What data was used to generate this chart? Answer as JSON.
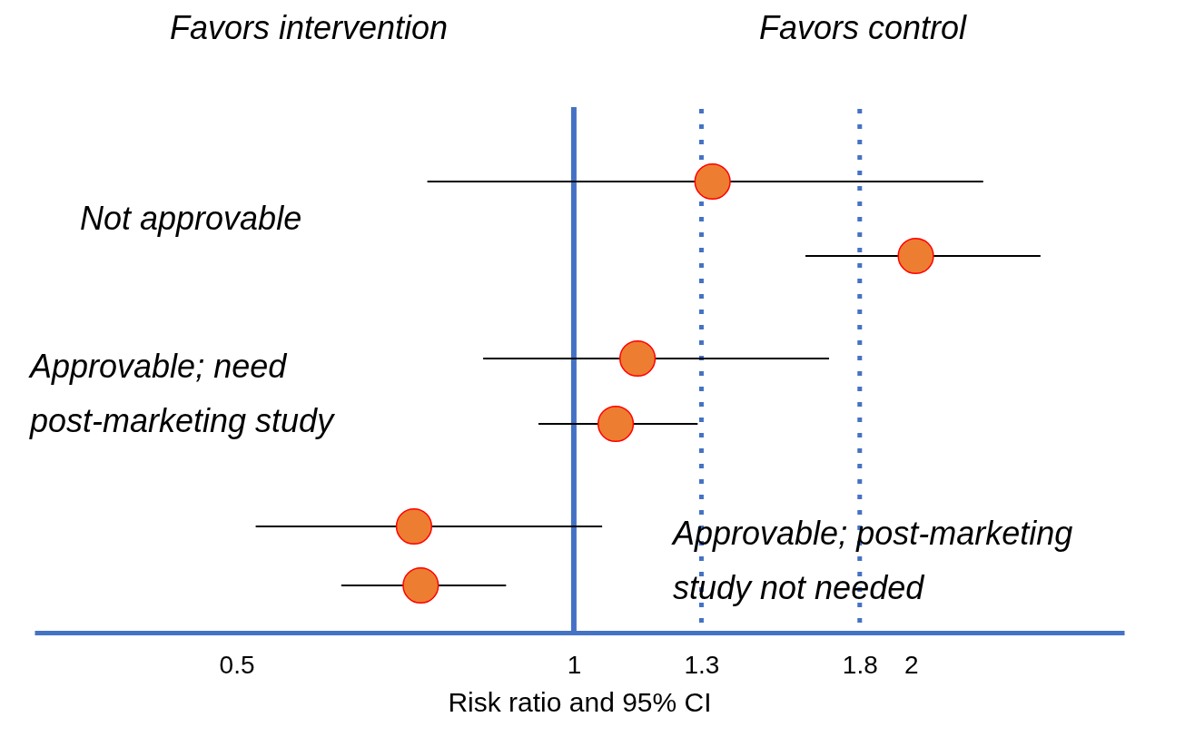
{
  "chart_data": {
    "type": "scatter",
    "orientation": "horizontal",
    "xlabel": "Risk ratio and 95% CI",
    "log": "x",
    "xlim": [
      0.33,
      3.1
    ],
    "xticks": [
      0.5,
      1,
      1.3,
      1.8,
      2
    ],
    "grid": false,
    "marker": "circle",
    "tick_labels": "x",
    "categories": [
      null,
      null,
      null,
      null,
      null,
      null
    ],
    "series": [
      {
        "color": "#ed7d31",
        "values": [
          1.33,
          2.02,
          1.14,
          1.09,
          0.72,
          0.73
        ],
        "errors": [
          [
            0.74,
            2.32
          ],
          [
            1.61,
            2.61
          ],
          [
            0.83,
            1.69
          ],
          [
            0.93,
            1.29
          ],
          [
            0.52,
            1.06
          ],
          [
            0.62,
            0.87
          ]
        ]
      }
    ],
    "ref_lines": [
      {
        "axis": "x",
        "value": 1,
        "color": "#4472c4",
        "line_style": "solid"
      },
      {
        "axis": "x",
        "value": 1.3,
        "color": "#4472c4",
        "line_style": "dotted"
      },
      {
        "axis": "x",
        "value": 1.8,
        "color": "#4472c4",
        "line_style": "dotted"
      }
    ],
    "annotations": [
      "Favors intervention",
      "Favors control",
      "Not approvable",
      "Approvable; need post-marketing study",
      "Approvable; post-marketing study not needed"
    ]
  }
}
